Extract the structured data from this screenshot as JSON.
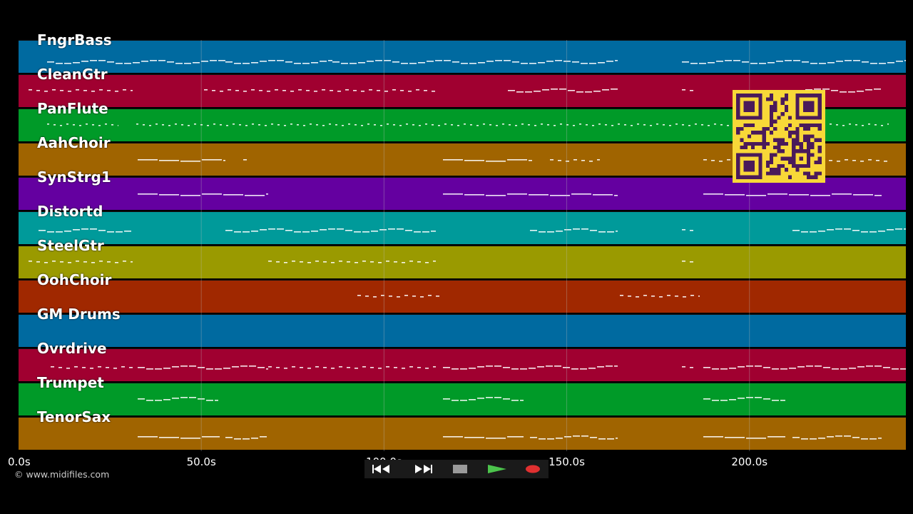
{
  "tracks": [
    {
      "name": "FngrBass",
      "color": "#006aa0"
    },
    {
      "name": "CleanGtr",
      "color": "#a00030"
    },
    {
      "name": "PanFlute",
      "color": "#009a28"
    },
    {
      "name": "AahChoir",
      "color": "#a06400"
    },
    {
      "name": "SynStrg1",
      "color": "#6400a0"
    },
    {
      "name": "Distortd",
      "color": "#009a9a"
    },
    {
      "name": "SteelGtr",
      "color": "#9a9a00"
    },
    {
      "name": "OohChoir",
      "color": "#a02800"
    },
    {
      "name": "GM Drums",
      "color": "#006aa0"
    },
    {
      "name": "Ovrdrive",
      "color": "#a00030"
    },
    {
      "name": "Trumpet",
      "color": "#009a28"
    },
    {
      "name": "TenorSax",
      "color": "#a06400"
    }
  ],
  "timeline": {
    "total_seconds": 242.8,
    "ticks": [
      {
        "value": 0,
        "label": "0.0s"
      },
      {
        "value": 50,
        "label": "50.0s"
      },
      {
        "value": 100,
        "label": "100.0s"
      },
      {
        "value": 150,
        "label": "150.0s"
      },
      {
        "value": 200,
        "label": "200.0s"
      }
    ]
  },
  "copyright": "© www.midifiles.com",
  "controls": [
    {
      "name": "rewind-button",
      "icon": "rewind-icon",
      "color": "#0d0d0d"
    },
    {
      "name": "fast-forward-button",
      "icon": "fast-forward-icon",
      "color": "#0d0d0d"
    },
    {
      "name": "stop-button",
      "icon": "stop-icon",
      "color": "#3a3a3a"
    },
    {
      "name": "play-button",
      "icon": "play-icon",
      "color": "#2c7a2c"
    },
    {
      "name": "record-button",
      "icon": "record-icon",
      "color": "#4a1e1e"
    }
  ]
}
